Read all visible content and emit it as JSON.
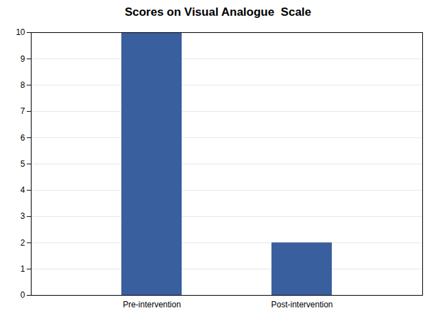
{
  "chart_data": {
    "type": "bar",
    "title": "Scores on Visual Analogue  Scale",
    "categories": [
      "Pre-intervention",
      "Post-intervention"
    ],
    "values": [
      10,
      2
    ],
    "color": "#3A5F9F",
    "ylim": [
      0,
      10
    ],
    "yticks": [
      0,
      1,
      2,
      3,
      4,
      5,
      6,
      7,
      8,
      9,
      10
    ],
    "grid": true
  }
}
